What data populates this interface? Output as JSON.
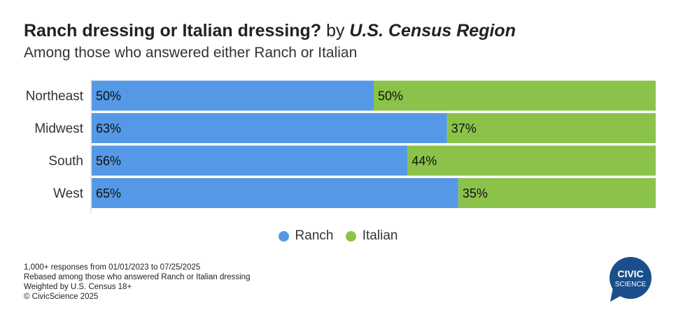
{
  "title": {
    "bold": "Ranch dressing or Italian dressing?",
    "regular": "by",
    "italic": "U.S. Census Region"
  },
  "subtitle": "Among those who answered either Ranch or Italian",
  "chart_data": {
    "type": "bar",
    "orientation": "horizontal",
    "stacked": true,
    "categories": [
      "Northeast",
      "Midwest",
      "South",
      "West"
    ],
    "series": [
      {
        "name": "Ranch",
        "values": [
          50,
          63,
          56,
          65
        ],
        "labels": [
          "50%",
          "63%",
          "56%",
          "65%"
        ],
        "color": "#5599e6"
      },
      {
        "name": "Italian",
        "values": [
          50,
          37,
          44,
          35
        ],
        "labels": [
          "50%",
          "37%",
          "44%",
          "35%"
        ],
        "color": "#8bc34a"
      }
    ],
    "xlim": [
      0,
      100
    ],
    "legend": "bottom-center",
    "grid": false
  },
  "footnotes": [
    "1,000+ responses from 01/01/2023 to 07/25/2025",
    "Rebased among those who answered Ranch or Italian dressing",
    "Weighted by U.S. Census 18+",
    "© CivicScience 2025"
  ],
  "logo": {
    "line1": "CIVIC",
    "line2": "SCIENCE",
    "color": "#1a4f8b"
  }
}
